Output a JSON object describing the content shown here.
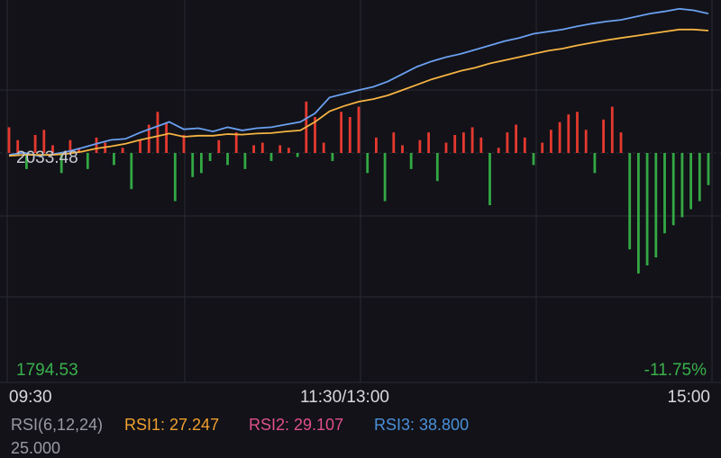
{
  "chart_data": {
    "type": "line",
    "ticker": {
      "baseline_price_label": "2033.48",
      "low_price_label": "1794.53",
      "low_pct_label": "-11.75%"
    },
    "time_axis": {
      "labels": [
        "09:30",
        "11:30/13:00",
        "15:00"
      ]
    },
    "indicator": {
      "name": "RSI(6,12,24)",
      "items": [
        {
          "label": "RSI1: 27.247",
          "color": "#f0a030"
        },
        {
          "label": "RSI2: 29.107",
          "color": "#e0508a"
        },
        {
          "label": "RSI3: 38.800",
          "color": "#4a90d9"
        }
      ],
      "next_value": "25.000"
    },
    "colors": {
      "price_line": "#6aa0f0",
      "avg_line": "#f5b342",
      "up_bar": "#e5392f",
      "down_bar": "#33a844",
      "grid": "#2a2a33",
      "label_green": "#3ab04c"
    },
    "series": [
      {
        "x": [
          0,
          5,
          10,
          15,
          20,
          25,
          30,
          35,
          40,
          45,
          50,
          55,
          60,
          65,
          70,
          75,
          80,
          85,
          90,
          95,
          100,
          105,
          110,
          115,
          120,
          125,
          130,
          135,
          140,
          145,
          150,
          155,
          160,
          165,
          170,
          175,
          180,
          185,
          190,
          195,
          200,
          205,
          210,
          215,
          220,
          225,
          230,
          235,
          240
        ],
        "values": [
          2030,
          2034,
          2028,
          2031,
          2036,
          2043,
          2051,
          2058,
          2060,
          2072,
          2082,
          2092,
          2078,
          2080,
          2074,
          2082,
          2076,
          2080,
          2082,
          2087,
          2092,
          2108,
          2138,
          2145,
          2152,
          2158,
          2168,
          2182,
          2196,
          2206,
          2214,
          2220,
          2228,
          2236,
          2244,
          2250,
          2258,
          2262,
          2266,
          2272,
          2277,
          2281,
          2284,
          2290,
          2296,
          2300,
          2305,
          2302,
          2296
        ]
      },
      {
        "x": [
          0,
          5,
          10,
          15,
          20,
          25,
          30,
          35,
          40,
          45,
          50,
          55,
          60,
          65,
          70,
          75,
          80,
          85,
          90,
          95,
          100,
          105,
          110,
          115,
          120,
          125,
          130,
          135,
          140,
          145,
          150,
          155,
          160,
          165,
          170,
          175,
          180,
          185,
          190,
          195,
          200,
          205,
          210,
          215,
          220,
          225,
          230,
          235,
          240
        ],
        "values": [
          2028,
          2030,
          2030,
          2030,
          2032,
          2036,
          2042,
          2046,
          2051,
          2058,
          2064,
          2070,
          2064,
          2066,
          2066,
          2069,
          2068,
          2070,
          2071,
          2074,
          2076,
          2092,
          2112,
          2122,
          2130,
          2135,
          2142,
          2152,
          2162,
          2172,
          2180,
          2188,
          2194,
          2202,
          2208,
          2214,
          2220,
          2226,
          2230,
          2236,
          2241,
          2246,
          2250,
          2254,
          2258,
          2262,
          2266,
          2266,
          2264
        ]
      }
    ],
    "volume": {
      "x": [
        0,
        3,
        6,
        9,
        12,
        15,
        18,
        21,
        24,
        27,
        30,
        33,
        36,
        39,
        42,
        45,
        48,
        51,
        54,
        57,
        60,
        63,
        66,
        69,
        72,
        75,
        78,
        81,
        84,
        87,
        90,
        93,
        96,
        99,
        102,
        105,
        108,
        111,
        114,
        117,
        120,
        123,
        126,
        129,
        132,
        135,
        138,
        141,
        144,
        147,
        150,
        153,
        156,
        159,
        162,
        165,
        168,
        171,
        174,
        177,
        180,
        183,
        186,
        189,
        192,
        195,
        198,
        201,
        204,
        207,
        210,
        213,
        216,
        219,
        222,
        225,
        228,
        231,
        234,
        237,
        240
      ],
      "values": [
        50,
        25,
        -20,
        35,
        45,
        15,
        -25,
        25,
        10,
        -20,
        30,
        20,
        -15,
        10,
        -45,
        25,
        55,
        80,
        60,
        -60,
        35,
        -30,
        -25,
        -10,
        25,
        -15,
        40,
        -20,
        15,
        20,
        -10,
        15,
        10,
        -5,
        100,
        70,
        20,
        -10,
        80,
        70,
        90,
        -25,
        30,
        -60,
        40,
        15,
        -20,
        25,
        40,
        -35,
        20,
        35,
        40,
        50,
        30,
        -65,
        10,
        40,
        55,
        30,
        -15,
        20,
        45,
        60,
        75,
        80,
        45,
        -25,
        65,
        90,
        40,
        -120,
        -150,
        -140,
        -130,
        -100,
        -90,
        -80,
        -70,
        -60,
        -40
      ],
      "scale": [
        -150,
        120
      ]
    },
    "ylim": [
      1794.53,
      2330
    ],
    "baseline": 2033.48
  }
}
